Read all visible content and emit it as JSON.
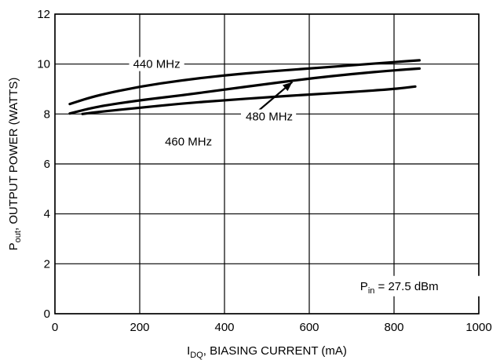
{
  "chart_data": {
    "type": "line",
    "xlabel": {
      "main": "I",
      "sub": "DQ",
      "rest": ", BIASING CURRENT (mA)"
    },
    "ylabel": {
      "main": "P",
      "sub": "out",
      "rest": ", OUTPUT POWER (WATTS)"
    },
    "xlim": [
      0,
      1000
    ],
    "ylim": [
      0,
      12
    ],
    "xticks": [
      0,
      200,
      400,
      600,
      800,
      1000
    ],
    "yticks": [
      0,
      2,
      4,
      6,
      8,
      10,
      12
    ],
    "grid": true,
    "series": [
      {
        "name": "440 MHz",
        "x": [
          35,
          100,
          200,
          300,
          400,
          500,
          600,
          700,
          800,
          860
        ],
        "y": [
          8.4,
          8.75,
          9.1,
          9.35,
          9.55,
          9.7,
          9.82,
          9.95,
          10.08,
          10.15
        ]
      },
      {
        "name": "460 MHz",
        "x": [
          35,
          100,
          200,
          300,
          400,
          500,
          600,
          700,
          800,
          860
        ],
        "y": [
          8.02,
          8.3,
          8.55,
          8.75,
          8.98,
          9.2,
          9.42,
          9.6,
          9.75,
          9.82
        ]
      },
      {
        "name": "480 MHz",
        "x": [
          65,
          100,
          200,
          300,
          400,
          500,
          600,
          700,
          800,
          850
        ],
        "y": [
          8.0,
          8.08,
          8.25,
          8.42,
          8.55,
          8.67,
          8.78,
          8.88,
          9.0,
          9.1
        ]
      }
    ],
    "annotations": {
      "pin": {
        "main": "P",
        "sub": "in",
        "rest": " = 27.5 dBm"
      }
    }
  }
}
